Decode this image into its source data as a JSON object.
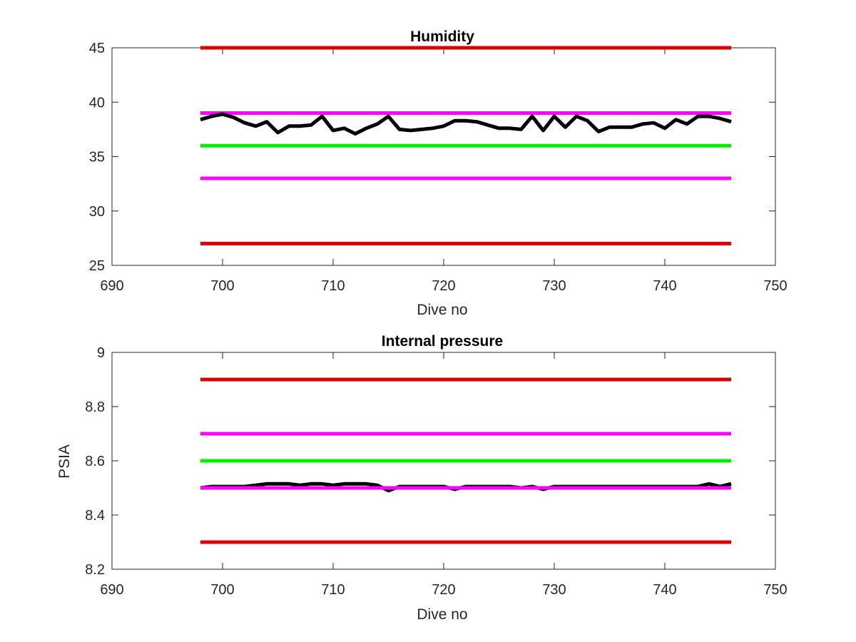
{
  "chart_data": [
    {
      "type": "line",
      "title": "Humidity",
      "xlabel": "Dive no",
      "ylabel": "",
      "xlim": [
        690,
        750
      ],
      "ylim": [
        25,
        45
      ],
      "xticks": [
        "690",
        "700",
        "710",
        "720",
        "730",
        "740",
        "750"
      ],
      "yticks": [
        "25",
        "30",
        "35",
        "40",
        "45"
      ],
      "grid": false,
      "legend": "none",
      "series": [
        {
          "role": "limit",
          "color": "#dd0000",
          "x": [
            698,
            746
          ],
          "y": [
            45,
            45
          ]
        },
        {
          "role": "limit",
          "color": "#ff00ff",
          "x": [
            698,
            746
          ],
          "y": [
            39,
            39
          ]
        },
        {
          "role": "limit",
          "color": "#00ee00",
          "x": [
            698,
            746
          ],
          "y": [
            36,
            36
          ]
        },
        {
          "role": "limit",
          "color": "#ff00ff",
          "x": [
            698,
            746
          ],
          "y": [
            33,
            33
          ]
        },
        {
          "role": "limit",
          "color": "#dd0000",
          "x": [
            698,
            746
          ],
          "y": [
            27,
            27
          ]
        },
        {
          "role": "data",
          "color": "#000000",
          "x": [
            698,
            699,
            700,
            701,
            702,
            703,
            704,
            705,
            706,
            707,
            708,
            709,
            710,
            711,
            712,
            713,
            714,
            715,
            716,
            717,
            718,
            719,
            720,
            721,
            722,
            723,
            724,
            725,
            726,
            727,
            728,
            729,
            730,
            731,
            732,
            733,
            734,
            735,
            736,
            737,
            738,
            739,
            740,
            741,
            742,
            743,
            744,
            745,
            746
          ],
          "y": [
            38.4,
            38.7,
            38.9,
            38.6,
            38.1,
            37.8,
            38.2,
            37.2,
            37.8,
            37.8,
            37.9,
            38.7,
            37.4,
            37.6,
            37.1,
            37.6,
            38.0,
            38.7,
            37.5,
            37.4,
            37.5,
            37.6,
            37.8,
            38.3,
            38.3,
            38.2,
            37.9,
            37.6,
            37.6,
            37.5,
            38.7,
            37.4,
            38.7,
            37.7,
            38.7,
            38.3,
            37.3,
            37.7,
            37.7,
            37.7,
            38.0,
            38.1,
            37.6,
            38.4,
            38.0,
            38.7,
            38.7,
            38.5,
            38.2
          ]
        }
      ]
    },
    {
      "type": "line",
      "title": "Internal pressure",
      "xlabel": "Dive no",
      "ylabel": "PSIA",
      "xlim": [
        690,
        750
      ],
      "ylim": [
        8.2,
        9.0
      ],
      "xticks": [
        "690",
        "700",
        "710",
        "720",
        "730",
        "740",
        "750"
      ],
      "yticks": [
        "8.2",
        "8.4",
        "8.6",
        "8.8",
        "9"
      ],
      "grid": false,
      "legend": "none",
      "series": [
        {
          "role": "limit",
          "color": "#dd0000",
          "x": [
            698,
            746
          ],
          "y": [
            8.9,
            8.9
          ]
        },
        {
          "role": "limit",
          "color": "#ff00ff",
          "x": [
            698,
            746
          ],
          "y": [
            8.7,
            8.7
          ]
        },
        {
          "role": "limit",
          "color": "#00ee00",
          "x": [
            698,
            746
          ],
          "y": [
            8.6,
            8.6
          ]
        },
        {
          "role": "data",
          "color": "#000000",
          "x": [
            698,
            699,
            700,
            701,
            702,
            703,
            704,
            705,
            706,
            707,
            708,
            709,
            710,
            711,
            712,
            713,
            714,
            715,
            716,
            717,
            718,
            719,
            720,
            721,
            722,
            723,
            724,
            725,
            726,
            727,
            728,
            729,
            730,
            731,
            732,
            733,
            734,
            735,
            736,
            737,
            738,
            739,
            740,
            741,
            742,
            743,
            744,
            745,
            746
          ],
          "y": [
            8.5,
            8.505,
            8.505,
            8.505,
            8.505,
            8.51,
            8.515,
            8.515,
            8.515,
            8.51,
            8.515,
            8.515,
            8.51,
            8.515,
            8.515,
            8.515,
            8.51,
            8.49,
            8.505,
            8.505,
            8.505,
            8.505,
            8.505,
            8.495,
            8.505,
            8.505,
            8.505,
            8.505,
            8.505,
            8.5,
            8.505,
            8.495,
            8.505,
            8.505,
            8.505,
            8.505,
            8.505,
            8.505,
            8.505,
            8.505,
            8.505,
            8.505,
            8.505,
            8.505,
            8.505,
            8.505,
            8.515,
            8.505,
            8.515
          ]
        },
        {
          "role": "limit",
          "color": "#ff00ff",
          "x": [
            698,
            746
          ],
          "y": [
            8.5,
            8.5
          ]
        },
        {
          "role": "limit",
          "color": "#dd0000",
          "x": [
            698,
            746
          ],
          "y": [
            8.3,
            8.3
          ]
        }
      ]
    }
  ]
}
